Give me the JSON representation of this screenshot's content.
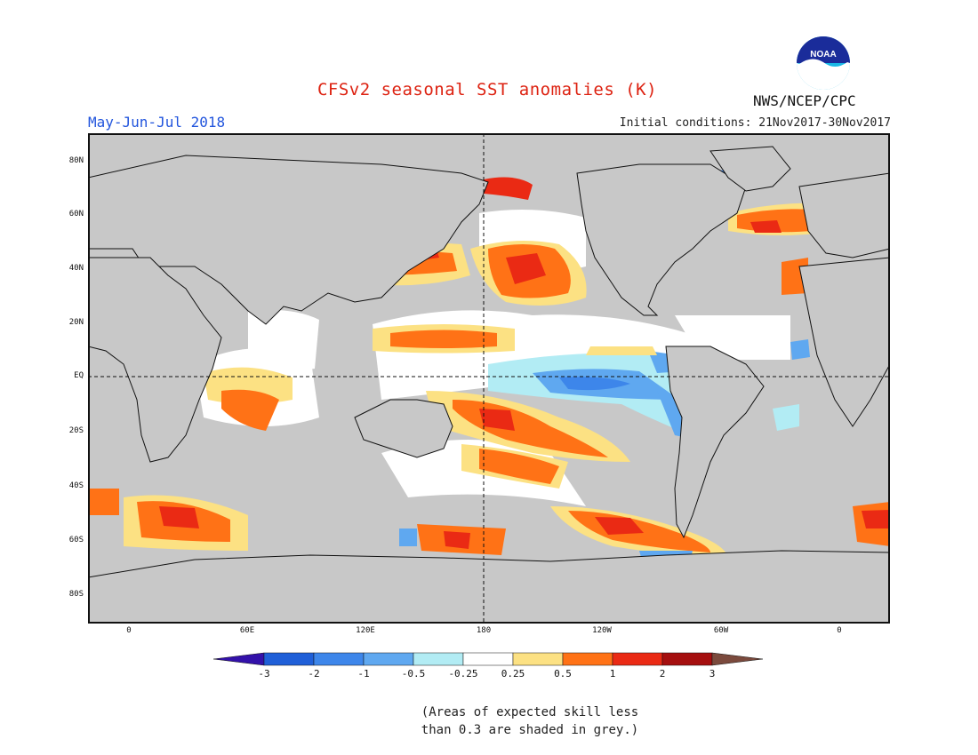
{
  "title": "CFSv2 seasonal SST anomalies (K)",
  "period": "May-Jun-Jul 2018",
  "initial_conditions": "Initial conditions: 21Nov2017-30Nov2017",
  "agency": "NWS/NCEP/CPC",
  "logo_text": "NOAA",
  "latitude_labels": [
    "80N",
    "60N",
    "40N",
    "20N",
    "EQ",
    "20S",
    "40S",
    "60S",
    "80S"
  ],
  "longitude_labels": [
    "0",
    "60E",
    "120E",
    "180",
    "120W",
    "60W",
    "0"
  ],
  "colorbar": {
    "labels": [
      "-3",
      "-2",
      "-1",
      "-0.5",
      "-0.25",
      "0.25",
      "0.5",
      "1",
      "2",
      "3"
    ],
    "colors": [
      "#3311aa",
      "#1f5fd8",
      "#3d86ea",
      "#5fa8f0",
      "#b2ecf4",
      "#ffffff",
      "#fce183",
      "#ff7216",
      "#ea2a14",
      "#a50f0f",
      "#7b4a3d"
    ]
  },
  "colors": {
    "land_missing": "#c8c8c8",
    "title": "#dd2211",
    "period": "#2255dd"
  },
  "note_lines": [
    "(Areas of expected skill less",
    "than 0.3 are shaded in grey.)"
  ]
}
